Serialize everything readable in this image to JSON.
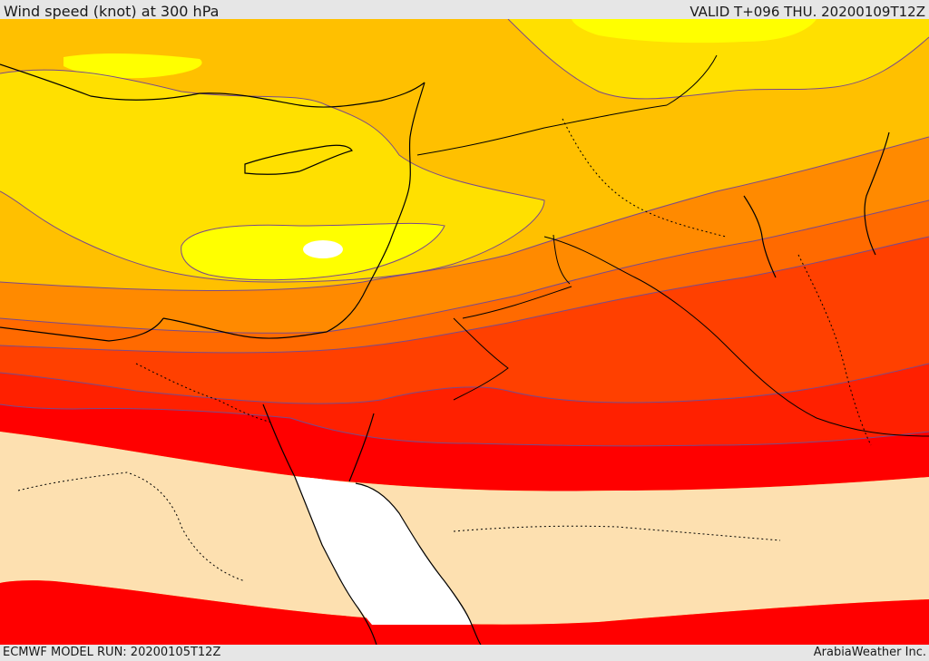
{
  "header": {
    "title": "Wind speed (knot) at 300 hPa",
    "valid": "VALID T+096 THU. 20200109T12Z"
  },
  "footer": {
    "model_run": "ECMWF MODEL RUN: 20200105T12Z",
    "credit": "ArabiaWeather Inc."
  },
  "colors": {
    "calm": "#ffffff",
    "light": "#fde0b0",
    "yellow_bright": "#ffff00",
    "yellow": "#ffe000",
    "amber": "#ffc000",
    "orange_light": "#ffa500",
    "orange": "#ff8a00",
    "orange_dark": "#ff6a00",
    "red_orange": "#ff4000",
    "red": "#ff2000",
    "red_deep": "#ff0000",
    "contour": "#7a4a8a",
    "coast": "#000000"
  }
}
